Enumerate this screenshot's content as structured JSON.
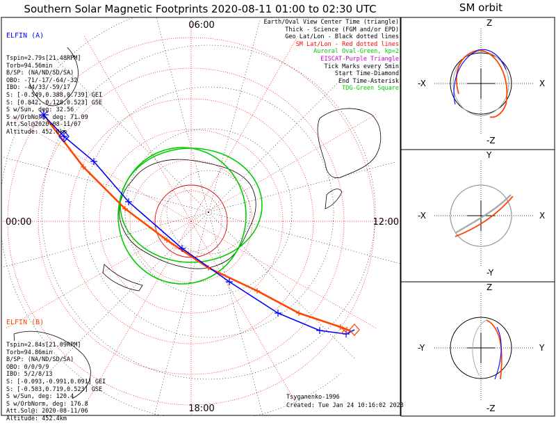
{
  "title": "Southern Solar Magnetic Footprints 2020-08-11 01:00 to 02:30 UTC",
  "sm_orbit_title": "SM orbit",
  "hour_labels": {
    "top": "06:00",
    "left": "00:00",
    "right": "12:00",
    "bottom": "18:00"
  },
  "elfin_a": {
    "header": "ELFIN (A)",
    "lines": [
      "Tspin=2.79s[21.48RPM]",
      "Torb=94.56min",
      "B/SP: (NA/ND/SD/SA)",
      "OBO: -71/-17/-64/-32",
      "IBO: -44/33/-59/17",
      "S: [-0.549,0.388,0.739] GEI",
      "S: [0.842,-0.128,0.523] GSE",
      "S w/Sun, deg: 32.56",
      "S w/OrbNorm, deg: 71.09",
      "Att.Sol@2020-08-11/07",
      "Altitude: 452.0km"
    ],
    "color": "#0000ff"
  },
  "elfin_b": {
    "header": "ELFIN (B)",
    "lines": [
      "Tspin=2.84s[21.09RPM]",
      "Torb=94.86min",
      "B/SP: (NA/ND/SD/SA)",
      "OBO: 0/0/9/9",
      "IBO: 5/2/8/13",
      "S: [-0.093,-0.991,0.091] GEI",
      "S: [-0.503,0.719,0.523] GSE",
      "S w/Sun, deg: 120.4",
      "S w/OrbNorm, deg: 176.8",
      "Att.Sol@: 2020-08-11/06",
      "Altitude: 452.4km"
    ],
    "color": "#ff4500"
  },
  "legend": [
    {
      "text": "Earth/Oval View Center Time (triangle)",
      "color": "#000000"
    },
    {
      "text": "Thick - Science (FGM and/or EPD)",
      "color": "#000000"
    },
    {
      "text": "Geo Lat/Lon - Black dotted lines",
      "color": "#000000"
    },
    {
      "text": "SM Lat/Lon - Red dotted lines",
      "color": "#ff0000"
    },
    {
      "text": "Auroral Oval-Green, kp=2",
      "color": "#00cc00"
    },
    {
      "text": "EISCAT-Purple Triangle",
      "color": "#cc00cc"
    },
    {
      "text": "Tick Marks every 5min",
      "color": "#000000"
    },
    {
      "text": "Start Time-Diamond",
      "color": "#000000"
    },
    {
      "text": "End Time-Asterisk",
      "color": "#000000"
    },
    {
      "text": "TDG-Green Square",
      "color": "#00cc00"
    }
  ],
  "credit_author": "Tsyganenko-1996",
  "credit_created": "Created: Tue Jan 24 10:16:02 2023",
  "orbit_panels": [
    {
      "top": "Z",
      "bottom": "-Z",
      "left": "-X",
      "right": "X"
    },
    {
      "top": "Y",
      "bottom": "-Y",
      "left": "-X",
      "right": "X"
    },
    {
      "top": "Z",
      "bottom": "-Z",
      "left": "-Y",
      "right": "Y"
    }
  ],
  "colors": {
    "elfin_a": "#0000ff",
    "elfin_b": "#ff4500",
    "auroral_oval": "#00cc00",
    "sm_grid": "#ff0000",
    "geo_grid": "#000000",
    "orbit_gray": "#aaaaaa"
  }
}
